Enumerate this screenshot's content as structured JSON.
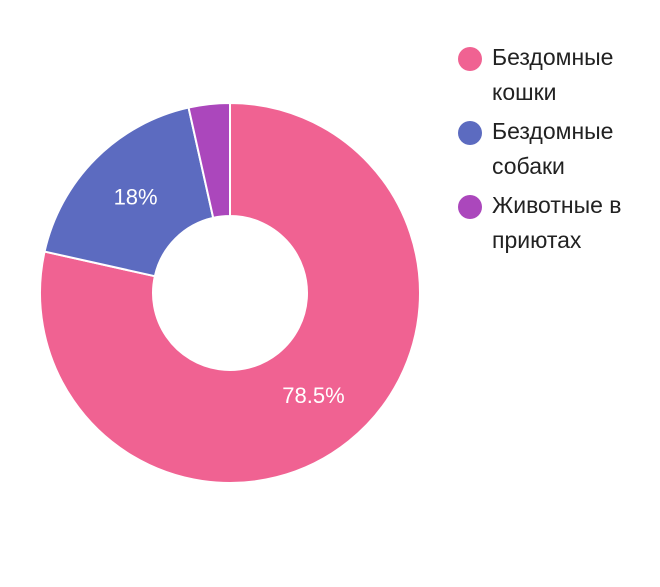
{
  "chart_data": {
    "type": "pie",
    "variant": "donut",
    "categories": [
      "Бездомные кошки",
      "Бездомные собаки",
      "Животные в приютах"
    ],
    "values": [
      78.5,
      18,
      3.5
    ],
    "data_labels": [
      "78.5%",
      "18%",
      ""
    ],
    "colors": [
      "#f06292",
      "#5c6bc0",
      "#ab47bc"
    ],
    "legend_position": "right",
    "start_angle": "top, clockwise"
  },
  "legend": {
    "items": [
      {
        "label": "Бездомные кошки",
        "color": "#f06292"
      },
      {
        "label": "Бездомные собаки",
        "color": "#5c6bc0"
      },
      {
        "label": "Животные в приютах",
        "color": "#ab47bc"
      }
    ]
  }
}
